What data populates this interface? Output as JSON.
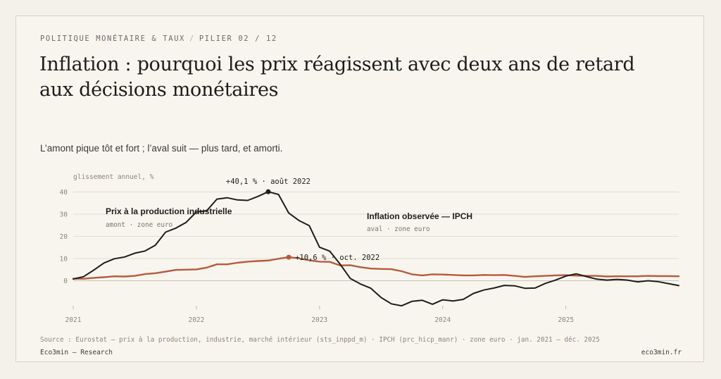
{
  "header": {
    "category": "POLITIQUE MONÉTAIRE & TAUX",
    "separator": "/",
    "pillar": "PILIER 02 / 12",
    "title": "Inflation : pourquoi les prix réagissent avec deux ans de retard aux décisions monétaires",
    "subtitle": "L’amont pique tôt et fort ; l’aval suit — plus tard, et amorti."
  },
  "footer": {
    "source": "Source : Eurostat — prix à la production, industrie, marché intérieur (sts_inppd_m) · IPCH (prc_hicp_manr) · zone euro · jan. 2021 – déc. 2025",
    "brand": "Eco3min — Research",
    "site": "eco3min.fr"
  },
  "colors": {
    "ppi": "#1d1d1b",
    "hicp": "#b65a3c",
    "grid": "#e2ddd2",
    "zero": "#c9c2b4"
  },
  "chart_data": {
    "type": "line",
    "ylabel": "glissement annuel, %",
    "ylim": [
      -10,
      40
    ],
    "yticks": [
      0,
      10,
      20,
      30,
      40
    ],
    "xticks": [
      "2021",
      "2022",
      "2023",
      "2024",
      "2025"
    ],
    "x": [
      "2021-01",
      "2021-02",
      "2021-03",
      "2021-04",
      "2021-05",
      "2021-06",
      "2021-07",
      "2021-08",
      "2021-09",
      "2021-10",
      "2021-11",
      "2021-12",
      "2022-01",
      "2022-02",
      "2022-03",
      "2022-04",
      "2022-05",
      "2022-06",
      "2022-07",
      "2022-08",
      "2022-09",
      "2022-10",
      "2022-11",
      "2022-12",
      "2023-01",
      "2023-02",
      "2023-03",
      "2023-04",
      "2023-05",
      "2023-06",
      "2023-07",
      "2023-08",
      "2023-09",
      "2023-10",
      "2023-11",
      "2023-12",
      "2024-01",
      "2024-02",
      "2024-03",
      "2024-04",
      "2024-05",
      "2024-06",
      "2024-07",
      "2024-08",
      "2024-09",
      "2024-10",
      "2024-11",
      "2024-12",
      "2025-01",
      "2025-02",
      "2025-03",
      "2025-04",
      "2025-05",
      "2025-06",
      "2025-07",
      "2025-08",
      "2025-09",
      "2025-10",
      "2025-11",
      "2025-12"
    ],
    "series": [
      {
        "key": "ppi",
        "name": "Prix à la production industrielle",
        "sub": "amont · zone euro",
        "values": [
          0.8,
          1.8,
          4.8,
          8.0,
          9.9,
          10.7,
          12.4,
          13.4,
          16.0,
          21.9,
          23.7,
          26.3,
          31.0,
          31.5,
          36.8,
          37.4,
          36.4,
          36.2,
          38.0,
          40.1,
          38.9,
          30.5,
          27.1,
          24.8,
          15.1,
          13.3,
          7.5,
          1.0,
          -1.5,
          -3.4,
          -7.6,
          -10.4,
          -11.3,
          -9.3,
          -8.8,
          -10.6,
          -8.6,
          -9.1,
          -8.4,
          -5.7,
          -4.2,
          -3.3,
          -2.1,
          -2.3,
          -3.4,
          -3.3,
          -1.2,
          0.3,
          2.1,
          3.1,
          1.9,
          0.7,
          0.3,
          0.6,
          0.3,
          -0.5,
          0.0,
          -0.4,
          -1.3,
          -2.2
        ]
      },
      {
        "key": "hicp",
        "name": "Inflation observée — IPCH",
        "sub": "aval · zone euro",
        "values": [
          0.9,
          0.9,
          1.3,
          1.6,
          2.0,
          1.9,
          2.2,
          3.0,
          3.4,
          4.1,
          4.9,
          5.0,
          5.1,
          5.9,
          7.4,
          7.4,
          8.1,
          8.6,
          8.9,
          9.1,
          9.9,
          10.6,
          10.1,
          9.2,
          8.6,
          8.5,
          6.9,
          7.0,
          6.1,
          5.5,
          5.3,
          5.2,
          4.3,
          2.9,
          2.4,
          2.9,
          2.8,
          2.6,
          2.4,
          2.4,
          2.6,
          2.5,
          2.6,
          2.2,
          1.7,
          2.0,
          2.2,
          2.4,
          2.5,
          2.3,
          2.2,
          2.2,
          1.9,
          2.0,
          2.0,
          2.0,
          2.2,
          2.1,
          2.1,
          2.0
        ]
      }
    ],
    "annotations": [
      {
        "series": "ppi",
        "x": "2022-08",
        "y": 40.1,
        "text": "+40,1 % · août 2022"
      },
      {
        "series": "hicp",
        "x": "2022-10",
        "y": 10.6,
        "text": "+10,6 % · oct. 2022"
      }
    ]
  }
}
